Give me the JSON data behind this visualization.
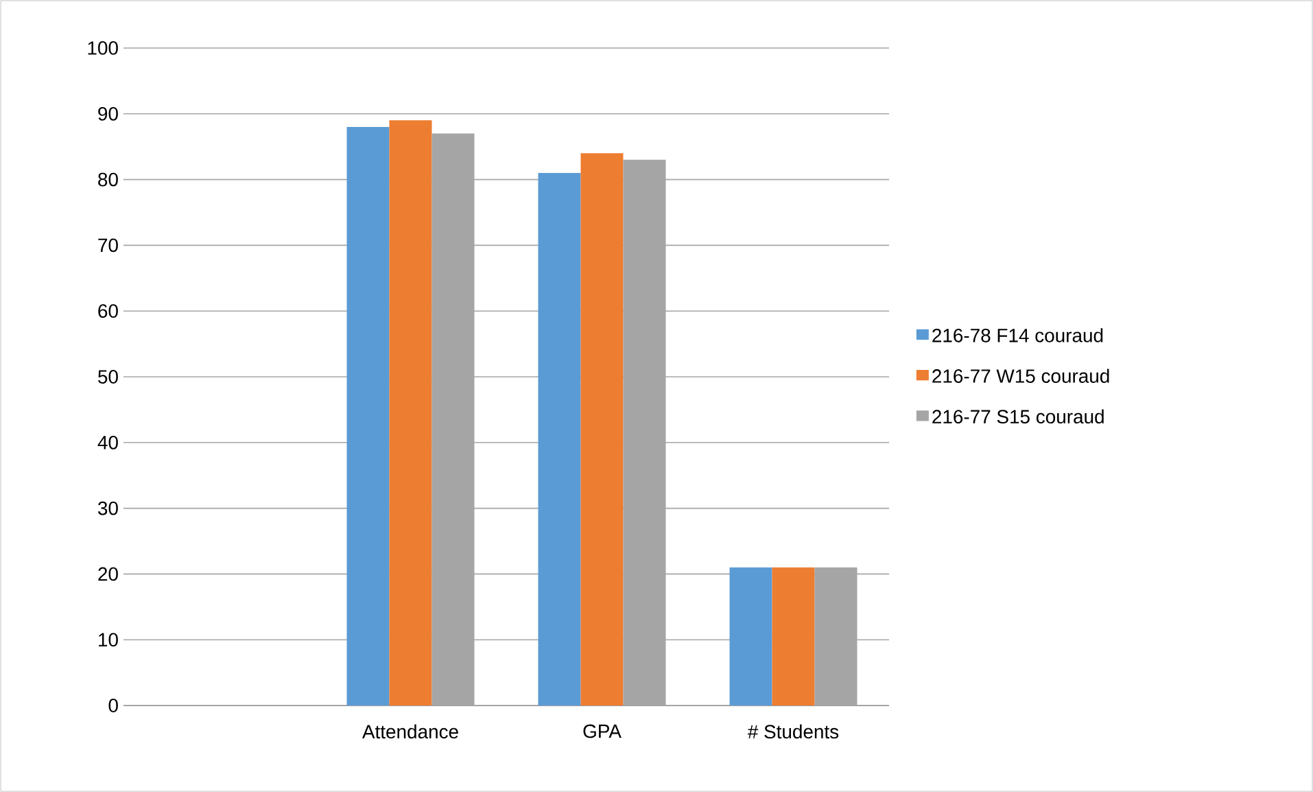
{
  "chart_data": {
    "type": "bar",
    "categories": [
      null,
      "Attendance",
      "GPA",
      "# Students"
    ],
    "series": [
      {
        "name": "216-78 F14 couraud",
        "color": "#5b9bd5",
        "values": [
          null,
          88,
          81,
          21
        ]
      },
      {
        "name": "216-77 W15 couraud",
        "color": "#ed7d31",
        "values": [
          null,
          89,
          84,
          21
        ]
      },
      {
        "name": "216-77 S15 couraud",
        "color": "#a5a5a5",
        "values": [
          null,
          87,
          83,
          21
        ]
      }
    ],
    "ylim": [
      0,
      100
    ],
    "yticks": [
      0,
      10,
      20,
      30,
      40,
      50,
      60,
      70,
      80,
      90,
      100
    ],
    "grid": "y",
    "legend": "right"
  }
}
